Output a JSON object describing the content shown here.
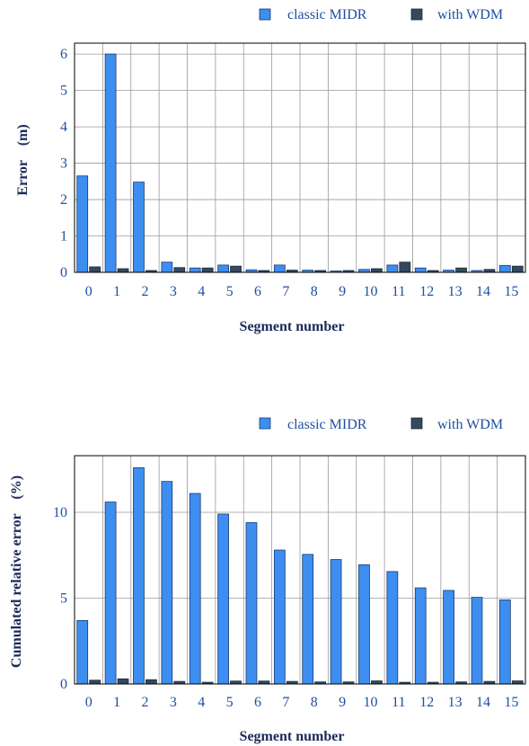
{
  "colors": {
    "classic": "#3d8ef0",
    "wdm": "#34495e",
    "grid": "#9a9a9a",
    "frame": "#000000"
  },
  "chart_data": [
    {
      "type": "bar",
      "categories": [
        "0",
        "1",
        "2",
        "3",
        "4",
        "5",
        "6",
        "7",
        "8",
        "9",
        "10",
        "11",
        "12",
        "13",
        "14",
        "15"
      ],
      "series": [
        {
          "name": "classic MIDR",
          "values": [
            2.65,
            6.0,
            2.48,
            0.28,
            0.12,
            0.2,
            0.07,
            0.2,
            0.06,
            0.04,
            0.08,
            0.2,
            0.12,
            0.06,
            0.05,
            0.19
          ]
        },
        {
          "name": "with WDM",
          "values": [
            0.15,
            0.1,
            0.05,
            0.13,
            0.12,
            0.17,
            0.05,
            0.06,
            0.05,
            0.05,
            0.1,
            0.28,
            0.05,
            0.12,
            0.08,
            0.17
          ]
        }
      ],
      "xlabel": "Segment number",
      "ylabel": "Error    (m)",
      "ylim": [
        0,
        6.3
      ],
      "yticks": [
        "0",
        "1",
        "2",
        "3",
        "4",
        "5",
        "6"
      ],
      "grid": true,
      "legend": "top-right"
    },
    {
      "type": "bar",
      "categories": [
        "0",
        "1",
        "2",
        "3",
        "4",
        "5",
        "6",
        "7",
        "8",
        "9",
        "10",
        "11",
        "12",
        "13",
        "14",
        "15"
      ],
      "series": [
        {
          "name": "classic MIDR",
          "values": [
            3.7,
            10.6,
            12.6,
            11.8,
            11.1,
            9.9,
            9.4,
            7.8,
            7.55,
            7.25,
            6.95,
            6.55,
            5.6,
            5.45,
            5.05,
            4.9
          ]
        },
        {
          "name": "with WDM",
          "values": [
            0.22,
            0.3,
            0.25,
            0.15,
            0.1,
            0.17,
            0.17,
            0.15,
            0.12,
            0.12,
            0.18,
            0.1,
            0.1,
            0.12,
            0.15,
            0.18
          ]
        }
      ],
      "xlabel": "Segment number",
      "ylabel": "Cumulated relative error    (%)",
      "ylim": [
        0,
        13.3
      ],
      "yticks": [
        "0",
        "5",
        "10"
      ],
      "ytick_values": [
        0,
        5,
        10
      ],
      "grid": true,
      "legend": "top-right"
    }
  ]
}
